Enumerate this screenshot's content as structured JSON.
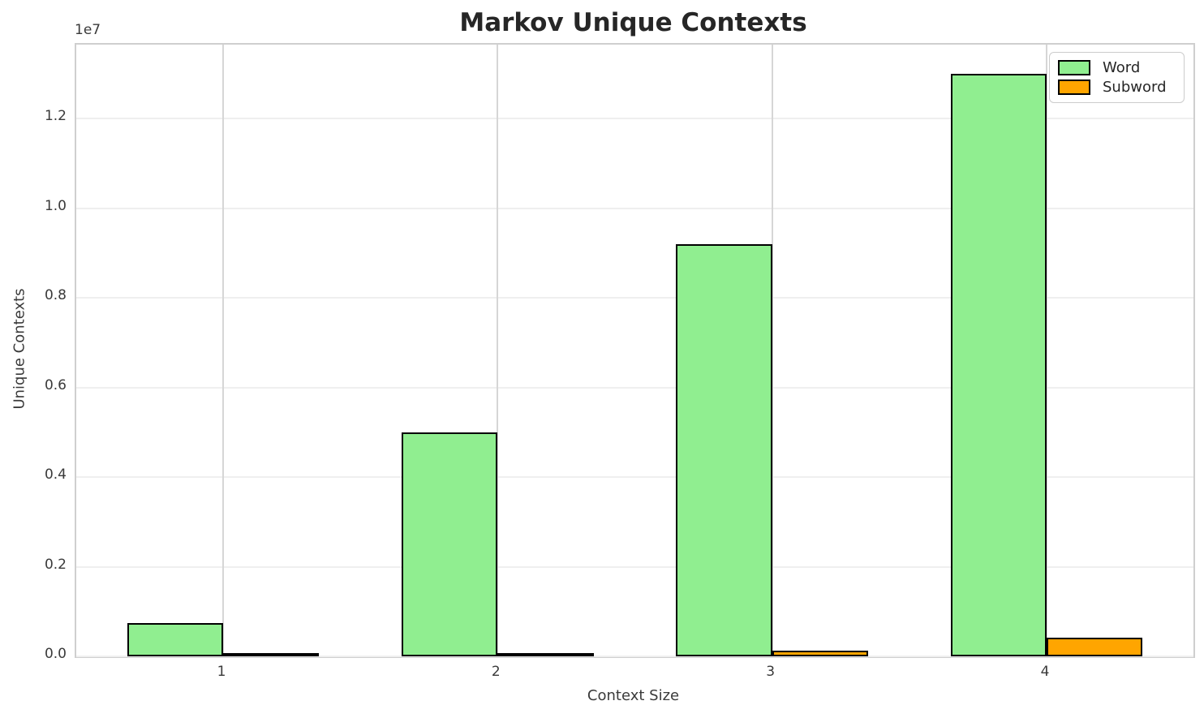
{
  "chart_data": {
    "type": "bar",
    "title": "Markov Unique Contexts",
    "xlabel": "Context Size",
    "ylabel": "Unique Contexts",
    "offset_text": "1e7",
    "categories": [
      "1",
      "2",
      "3",
      "4"
    ],
    "series": [
      {
        "name": "Word",
        "color": "#90EE90",
        "values": [
          750000,
          5000000,
          9200000,
          13000000
        ]
      },
      {
        "name": "Subword",
        "color": "#FFA500",
        "values": [
          10000,
          40000,
          130000,
          410000
        ]
      }
    ],
    "bar_edge_color": "#000000",
    "bar_width_data_units": 0.35,
    "xlim": [
      0.465,
      4.535
    ],
    "ylim": [
      0,
      13650000
    ],
    "y_ticks": [
      {
        "value": 0,
        "label": "0.0"
      },
      {
        "value": 2000000,
        "label": "0.2"
      },
      {
        "value": 4000000,
        "label": "0.4"
      },
      {
        "value": 6000000,
        "label": "0.6"
      },
      {
        "value": 8000000,
        "label": "0.8"
      },
      {
        "value": 10000000,
        "label": "1.0"
      },
      {
        "value": 12000000,
        "label": "1.2"
      }
    ],
    "grid": {
      "horizontal": true,
      "vertical": true
    },
    "legend": {
      "position": "upper right",
      "entries": [
        "Word",
        "Subword"
      ]
    },
    "style": {
      "h_grid_color": "#efefef",
      "v_grid_color": "#d6d6d6",
      "spine_color": "#cfcfcf",
      "title_color": "#262626",
      "tick_color": "#3a3a3a"
    }
  }
}
